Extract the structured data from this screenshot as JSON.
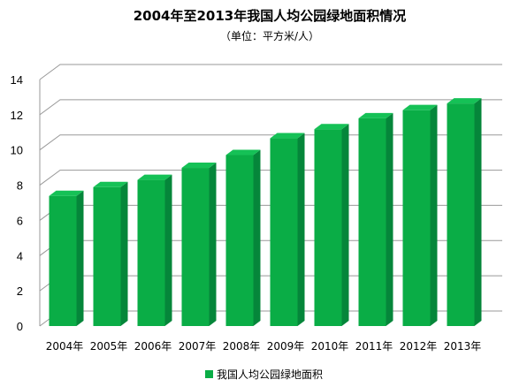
{
  "chart_data": {
    "type": "bar",
    "title": "2004年至2013年我国人均公园绿地面积情况",
    "subtitle": "（单位：平方米/人）",
    "categories": [
      "2004年",
      "2005年",
      "2006年",
      "2007年",
      "2008年",
      "2009年",
      "2010年",
      "2011年",
      "2012年",
      "2013年"
    ],
    "series": [
      {
        "name": "我国人均公园绿地面积",
        "values": [
          7.39,
          7.89,
          8.3,
          8.98,
          9.71,
          10.66,
          11.18,
          11.8,
          12.26,
          12.64
        ]
      }
    ],
    "ylim": [
      0,
      14
    ],
    "yticks": [
      0,
      2,
      4,
      6,
      8,
      10,
      12,
      14
    ],
    "grid": true,
    "legend": "bottom",
    "colors": {
      "bar_front": "#0aad46",
      "bar_side": "#05863a",
      "bar_top": "#15c156",
      "grid": "#999999",
      "legend_marker": "#0aad46"
    }
  }
}
